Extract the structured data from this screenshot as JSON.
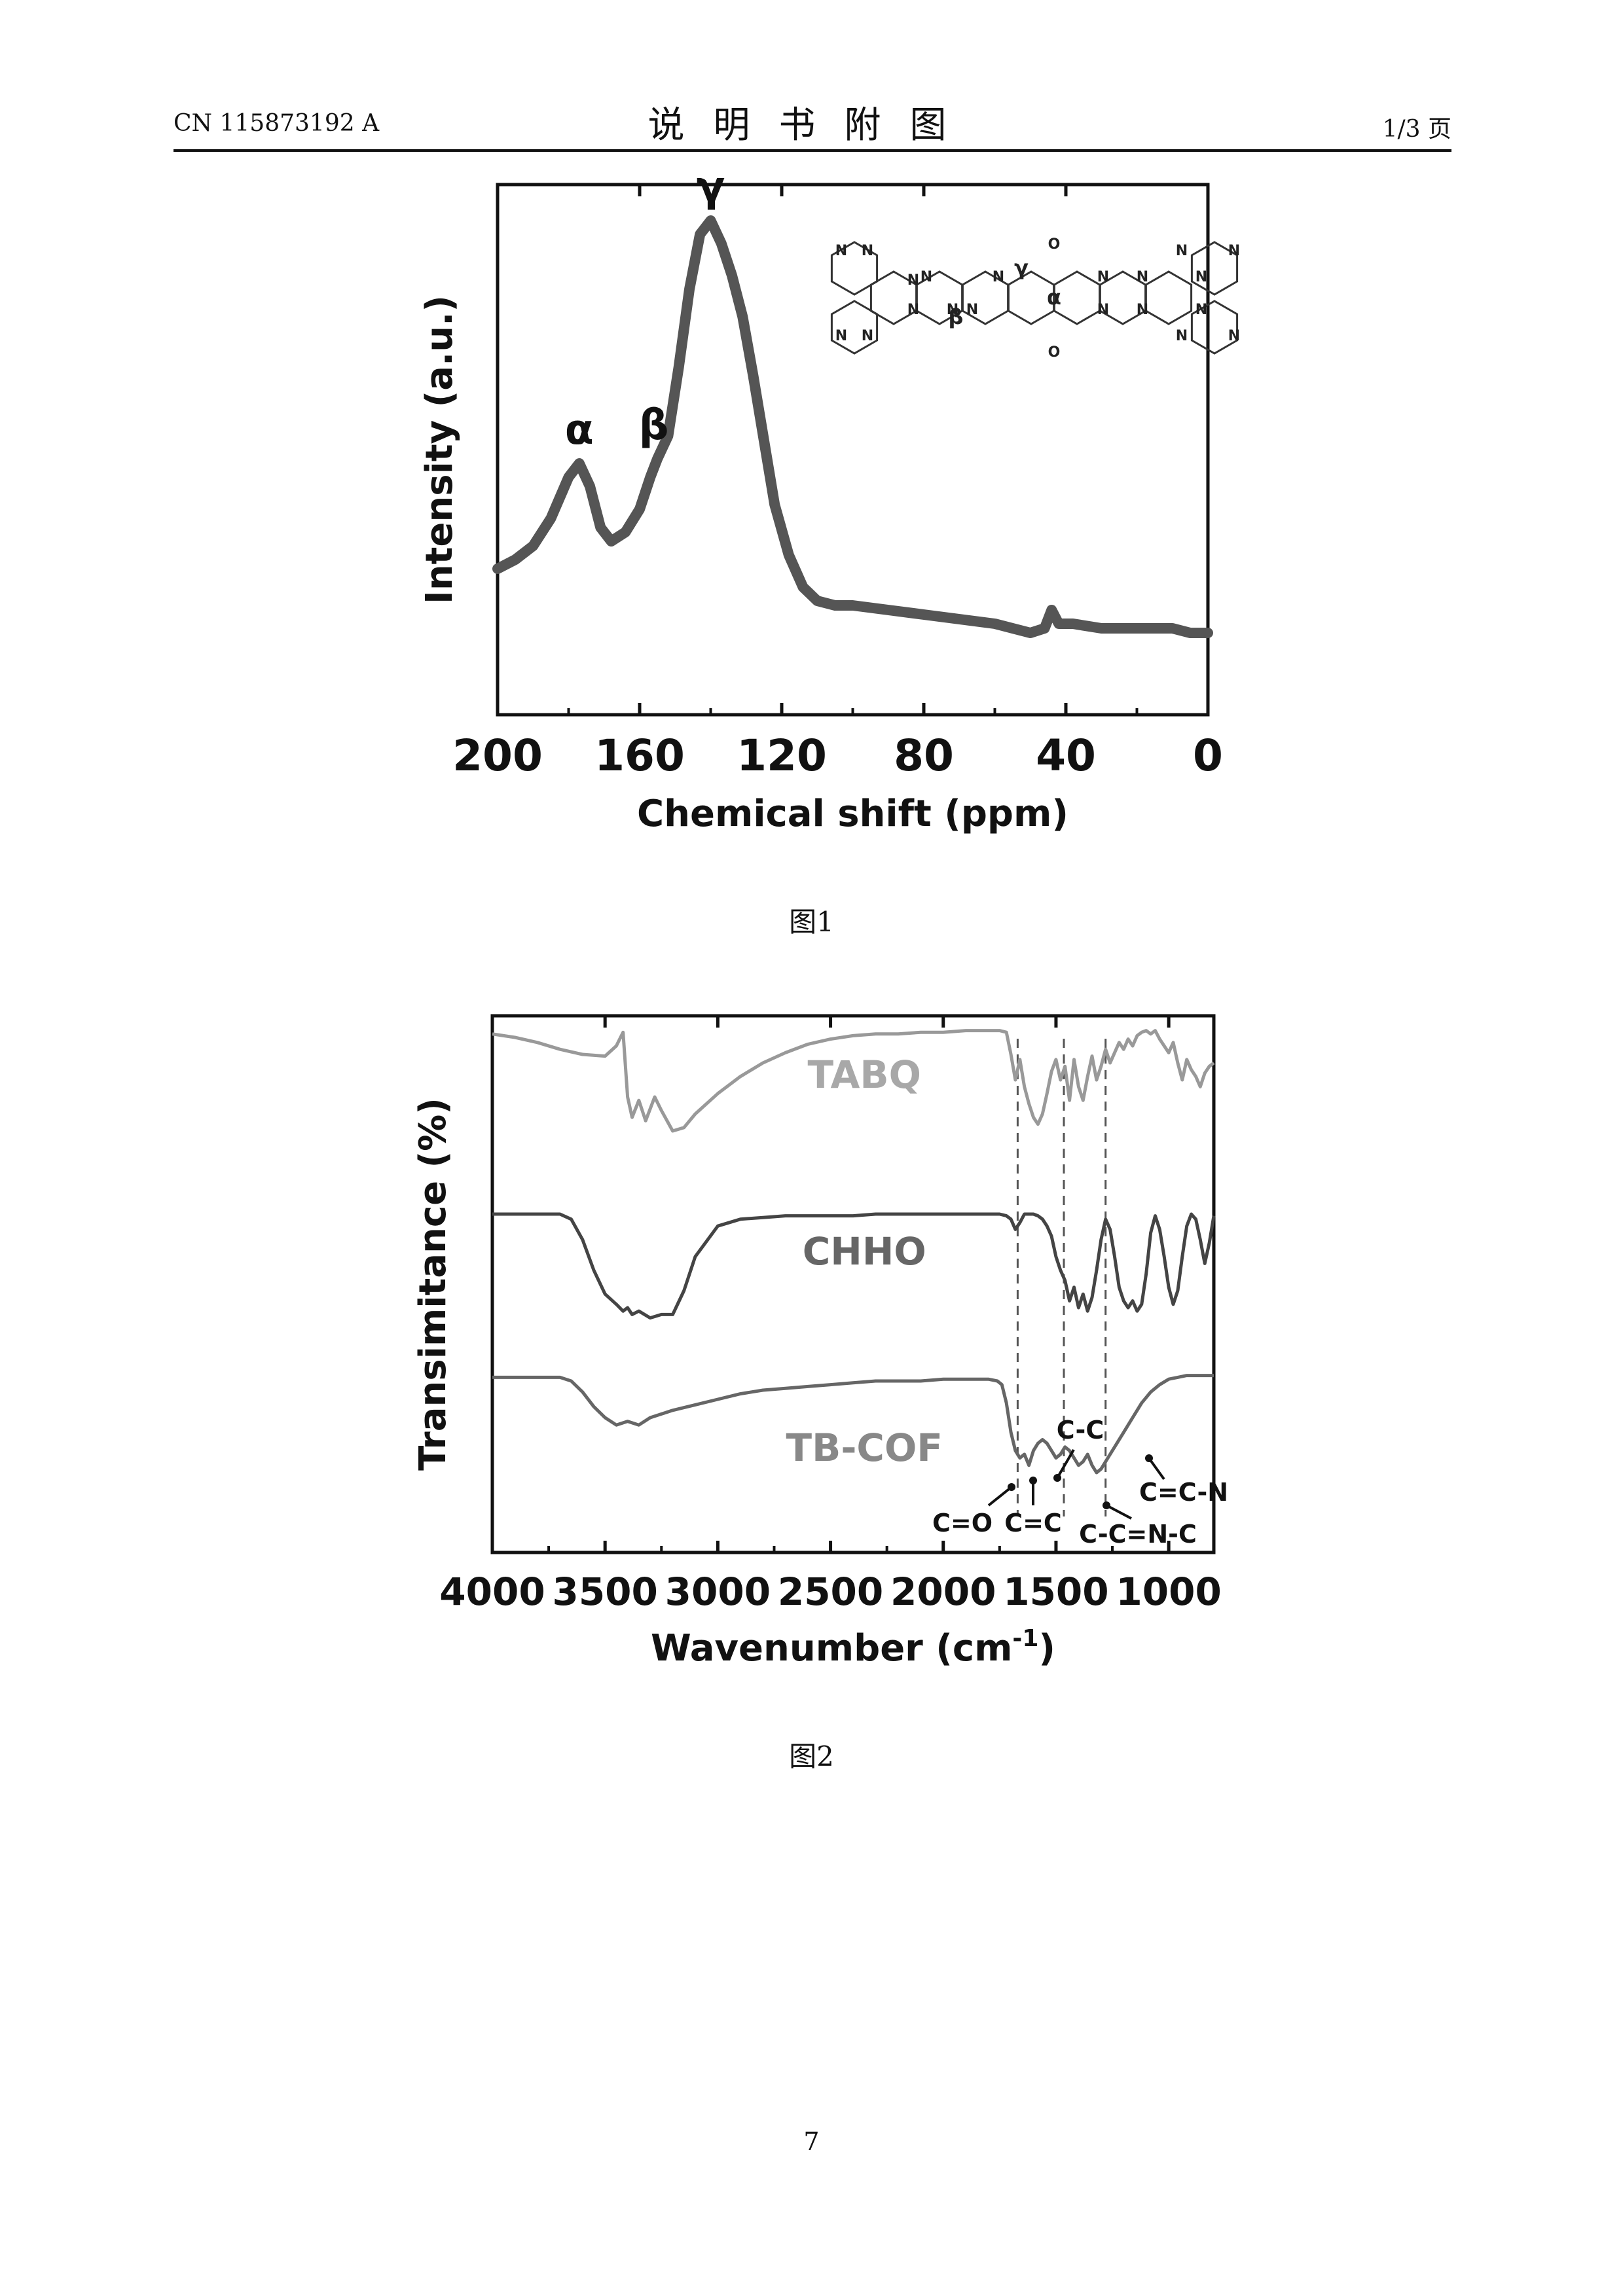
{
  "header": {
    "left": "CN 115873192 A",
    "center": "说明书附图",
    "right": "1/3 页"
  },
  "figures": [
    {
      "caption": "图1"
    },
    {
      "caption": "图2"
    }
  ],
  "page_number": "7",
  "chart_data": [
    {
      "type": "line",
      "xlabel": "Chemical shift (ppm)",
      "ylabel": "Intensity (a.u.)",
      "xlim": [
        200,
        0
      ],
      "x_ticks": [
        "200",
        "160",
        "120",
        "80",
        "40",
        "0"
      ],
      "x_reversed": true,
      "y_ticks_shown": false,
      "peak_labels": [
        {
          "text": "α",
          "x": 177
        },
        {
          "text": "β",
          "x": 156
        },
        {
          "text": "γ",
          "x": 140
        }
      ],
      "inset": {
        "description_labels": [
          "N",
          "N",
          "N",
          "N",
          "N",
          "N",
          "N",
          "N",
          "N",
          "N",
          "N",
          "N",
          "N",
          "N",
          "N",
          "N",
          "N",
          "N",
          "N",
          "N",
          "O",
          "O",
          "α",
          "β",
          "γ"
        ]
      },
      "series": [
        {
          "color": "#555555",
          "x": [
            200,
            195,
            190,
            185,
            180,
            177,
            174,
            171,
            168,
            164,
            160,
            157,
            155,
            152,
            149,
            146,
            143,
            140,
            137,
            134,
            131,
            128,
            125,
            122,
            118,
            114,
            110,
            105,
            100,
            90,
            80,
            70,
            60,
            55,
            50,
            46,
            44,
            42,
            38,
            30,
            20,
            10,
            5,
            0
          ],
          "y": [
            0.24,
            0.26,
            0.29,
            0.35,
            0.44,
            0.47,
            0.42,
            0.33,
            0.3,
            0.32,
            0.37,
            0.44,
            0.48,
            0.53,
            0.68,
            0.85,
            0.97,
            1.0,
            0.95,
            0.88,
            0.79,
            0.66,
            0.52,
            0.38,
            0.27,
            0.2,
            0.17,
            0.16,
            0.16,
            0.15,
            0.14,
            0.13,
            0.12,
            0.11,
            0.1,
            0.11,
            0.15,
            0.12,
            0.12,
            0.11,
            0.11,
            0.11,
            0.1,
            0.1
          ]
        }
      ]
    },
    {
      "type": "line",
      "xlabel": "Wavenumber (cm",
      "xlabel_sup": "-1",
      "xlabel_end": ")",
      "ylabel": "Transimitance (%)",
      "xlim": [
        4000,
        800
      ],
      "x_ticks": [
        "4000",
        "3500",
        "3000",
        "2500",
        "2000",
        "1500",
        "1000"
      ],
      "x_reversed": true,
      "y_ticks_shown": false,
      "dashed_reference_lines": [
        1670,
        1465,
        1280
      ],
      "annotations": [
        {
          "text": "C=O",
          "x": 1670
        },
        {
          "text": "C=C",
          "x": 1580
        },
        {
          "text": "C-C",
          "x": 1465
        },
        {
          "text": "C-C=N-C",
          "x": 1300
        },
        {
          "text": "C=C-N",
          "x": 1080
        }
      ],
      "series": [
        {
          "name": "TABQ",
          "color": "#999999",
          "x": [
            4000,
            3900,
            3800,
            3700,
            3600,
            3500,
            3450,
            3420,
            3400,
            3380,
            3350,
            3320,
            3280,
            3250,
            3200,
            3150,
            3100,
            3000,
            2900,
            2800,
            2700,
            2600,
            2500,
            2400,
            2300,
            2200,
            2100,
            2000,
            1900,
            1800,
            1750,
            1720,
            1700,
            1680,
            1660,
            1640,
            1620,
            1600,
            1580,
            1560,
            1540,
            1520,
            1500,
            1480,
            1460,
            1440,
            1420,
            1400,
            1380,
            1360,
            1340,
            1320,
            1300,
            1280,
            1260,
            1240,
            1220,
            1200,
            1180,
            1160,
            1140,
            1120,
            1100,
            1080,
            1060,
            1040,
            1020,
            1000,
            980,
            960,
            940,
            920,
            900,
            880,
            860,
            840,
            820,
            800
          ],
          "y": [
            0.97,
            0.95,
            0.92,
            0.88,
            0.85,
            0.84,
            0.9,
            0.98,
            0.6,
            0.48,
            0.58,
            0.46,
            0.6,
            0.52,
            0.4,
            0.42,
            0.5,
            0.62,
            0.72,
            0.8,
            0.86,
            0.91,
            0.94,
            0.96,
            0.97,
            0.97,
            0.98,
            0.98,
            0.99,
            0.99,
            0.99,
            0.98,
            0.85,
            0.7,
            0.82,
            0.66,
            0.56,
            0.48,
            0.44,
            0.5,
            0.62,
            0.75,
            0.82,
            0.7,
            0.78,
            0.58,
            0.82,
            0.66,
            0.58,
            0.72,
            0.84,
            0.7,
            0.78,
            0.88,
            0.8,
            0.86,
            0.92,
            0.88,
            0.94,
            0.9,
            0.96,
            0.98,
            0.99,
            0.97,
            0.99,
            0.94,
            0.9,
            0.86,
            0.92,
            0.8,
            0.7,
            0.82,
            0.76,
            0.72,
            0.66,
            0.74,
            0.78,
            0.8
          ]
        },
        {
          "name": "CHHO",
          "color": "#444444",
          "x": [
            4000,
            3900,
            3800,
            3700,
            3650,
            3600,
            3550,
            3500,
            3450,
            3420,
            3400,
            3380,
            3350,
            3300,
            3250,
            3200,
            3150,
            3100,
            3000,
            2900,
            2800,
            2700,
            2600,
            2500,
            2400,
            2300,
            2200,
            2100,
            2000,
            1900,
            1800,
            1750,
            1720,
            1700,
            1680,
            1660,
            1640,
            1620,
            1600,
            1580,
            1560,
            1540,
            1520,
            1500,
            1480,
            1460,
            1440,
            1420,
            1400,
            1380,
            1360,
            1340,
            1320,
            1300,
            1280,
            1260,
            1240,
            1220,
            1200,
            1180,
            1160,
            1140,
            1120,
            1100,
            1080,
            1060,
            1040,
            1020,
            1000,
            980,
            960,
            940,
            920,
            900,
            880,
            860,
            840,
            820,
            800
          ],
          "y": [
            0.95,
            0.95,
            0.95,
            0.95,
            0.92,
            0.8,
            0.62,
            0.48,
            0.42,
            0.38,
            0.4,
            0.36,
            0.38,
            0.34,
            0.36,
            0.36,
            0.5,
            0.7,
            0.88,
            0.92,
            0.93,
            0.94,
            0.94,
            0.94,
            0.94,
            0.95,
            0.95,
            0.95,
            0.95,
            0.95,
            0.95,
            0.95,
            0.94,
            0.92,
            0.86,
            0.9,
            0.95,
            0.95,
            0.95,
            0.94,
            0.92,
            0.88,
            0.82,
            0.7,
            0.62,
            0.56,
            0.44,
            0.52,
            0.4,
            0.48,
            0.38,
            0.46,
            0.62,
            0.8,
            0.92,
            0.86,
            0.7,
            0.52,
            0.44,
            0.4,
            0.44,
            0.38,
            0.42,
            0.6,
            0.84,
            0.94,
            0.86,
            0.7,
            0.52,
            0.42,
            0.5,
            0.7,
            0.88,
            0.95,
            0.92,
            0.8,
            0.66,
            0.78,
            0.94
          ]
        },
        {
          "name": "TB-COF",
          "color": "#666666",
          "x": [
            4000,
            3900,
            3800,
            3700,
            3650,
            3600,
            3550,
            3500,
            3450,
            3400,
            3350,
            3300,
            3250,
            3200,
            3100,
            3000,
            2900,
            2800,
            2700,
            2600,
            2500,
            2400,
            2300,
            2200,
            2100,
            2000,
            1900,
            1800,
            1760,
            1740,
            1720,
            1700,
            1680,
            1660,
            1640,
            1620,
            1600,
            1580,
            1560,
            1540,
            1520,
            1500,
            1480,
            1460,
            1440,
            1420,
            1400,
            1380,
            1360,
            1340,
            1320,
            1300,
            1280,
            1260,
            1240,
            1200,
            1160,
            1120,
            1080,
            1040,
            1000,
            960,
            920,
            880,
            840,
            800
          ],
          "y": [
            0.92,
            0.92,
            0.92,
            0.92,
            0.9,
            0.84,
            0.76,
            0.7,
            0.66,
            0.68,
            0.66,
            0.7,
            0.72,
            0.74,
            0.77,
            0.8,
            0.83,
            0.85,
            0.86,
            0.87,
            0.88,
            0.89,
            0.9,
            0.9,
            0.9,
            0.91,
            0.91,
            0.91,
            0.9,
            0.88,
            0.78,
            0.62,
            0.52,
            0.48,
            0.5,
            0.44,
            0.52,
            0.56,
            0.58,
            0.56,
            0.52,
            0.48,
            0.5,
            0.54,
            0.52,
            0.48,
            0.44,
            0.46,
            0.5,
            0.44,
            0.4,
            0.42,
            0.46,
            0.5,
            0.54,
            0.62,
            0.7,
            0.78,
            0.84,
            0.88,
            0.91,
            0.92,
            0.93,
            0.93,
            0.93,
            0.93
          ]
        }
      ]
    }
  ]
}
